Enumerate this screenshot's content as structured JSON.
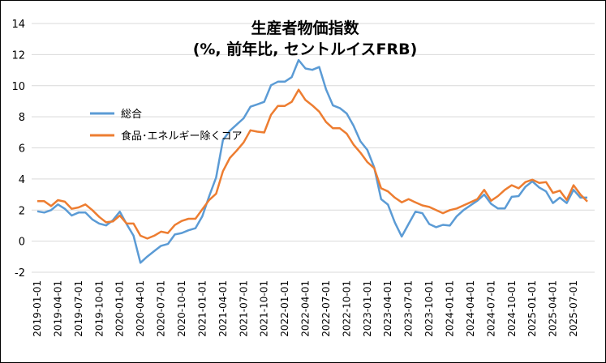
{
  "chart_data": {
    "type": "line",
    "title": "生産者物価指数",
    "subtitle": "(%, 前年比, セントルイスFRB)",
    "xlabel": "",
    "ylabel": "",
    "ylim": [
      -2,
      14
    ],
    "yticks": [
      "-2",
      "0",
      "2",
      "4",
      "6",
      "8",
      "10",
      "12",
      "14"
    ],
    "grid": true,
    "legend_position": "upper-left inside plot",
    "x_start": "2019-01",
    "x_end": "2025-09",
    "frequency": "monthly",
    "xtick_labels": [
      "2019-01-01",
      "2019-04-01",
      "2019-07-01",
      "2019-10-01",
      "2020-01-01",
      "2020-04-01",
      "2020-07-01",
      "2020-10-01",
      "2021-01-01",
      "2021-04-01",
      "2021-07-01",
      "2021-10-01",
      "2022-01-01",
      "2022-04-01",
      "2022-07-01",
      "2022-10-01",
      "2023-01-01",
      "2023-04-01",
      "2023-07-01",
      "2023-10-01",
      "2024-01-01",
      "2024-04-01",
      "2024-07-01",
      "2024-10-01",
      "2025-01-01",
      "2025-04-01",
      "2025-07-01"
    ],
    "series": [
      {
        "name": "総合",
        "color": "#5B9BD5",
        "values": [
          1.92,
          1.84,
          2.0,
          2.36,
          2.08,
          1.65,
          1.84,
          1.84,
          1.4,
          1.13,
          1.01,
          1.35,
          1.9,
          1.09,
          0.35,
          -1.39,
          -0.99,
          -0.64,
          -0.3,
          -0.18,
          0.43,
          0.52,
          0.7,
          0.83,
          1.6,
          2.9,
          4.1,
          6.5,
          7.1,
          7.5,
          7.9,
          8.65,
          8.8,
          8.96,
          10.03,
          10.26,
          10.26,
          10.55,
          11.65,
          11.11,
          11.02,
          11.2,
          9.77,
          8.73,
          8.56,
          8.21,
          7.43,
          6.42,
          5.87,
          4.74,
          2.7,
          2.35,
          1.2,
          0.3,
          1.1,
          1.9,
          1.8,
          1.1,
          0.9,
          1.05,
          1.0,
          1.6,
          2.0,
          2.3,
          2.6,
          3.0,
          2.4,
          2.1,
          2.1,
          2.85,
          2.9,
          3.5,
          3.85,
          3.45,
          3.2,
          2.45,
          2.8,
          2.45,
          3.3,
          2.8,
          2.8
        ]
      },
      {
        "name": "食品･エネルギー除くコア",
        "color": "#ED7D31",
        "values": [
          2.57,
          2.57,
          2.26,
          2.64,
          2.54,
          2.08,
          2.17,
          2.36,
          2.0,
          1.56,
          1.21,
          1.27,
          1.65,
          1.13,
          1.13,
          0.35,
          0.17,
          0.35,
          0.61,
          0.52,
          1.04,
          1.3,
          1.44,
          1.44,
          2.05,
          2.65,
          3.05,
          4.5,
          5.35,
          5.83,
          6.35,
          7.13,
          7.04,
          6.99,
          8.13,
          8.7,
          8.7,
          8.96,
          9.74,
          9.08,
          8.73,
          8.33,
          7.66,
          7.26,
          7.26,
          6.91,
          6.21,
          5.69,
          5.09,
          4.69,
          3.4,
          3.2,
          2.8,
          2.5,
          2.7,
          2.5,
          2.3,
          2.2,
          2.0,
          1.8,
          2.0,
          2.1,
          2.3,
          2.5,
          2.7,
          3.3,
          2.6,
          2.9,
          3.3,
          3.6,
          3.4,
          3.8,
          3.95,
          3.75,
          3.8,
          3.1,
          3.25,
          2.65,
          3.6,
          3.0,
          2.55
        ]
      }
    ]
  }
}
